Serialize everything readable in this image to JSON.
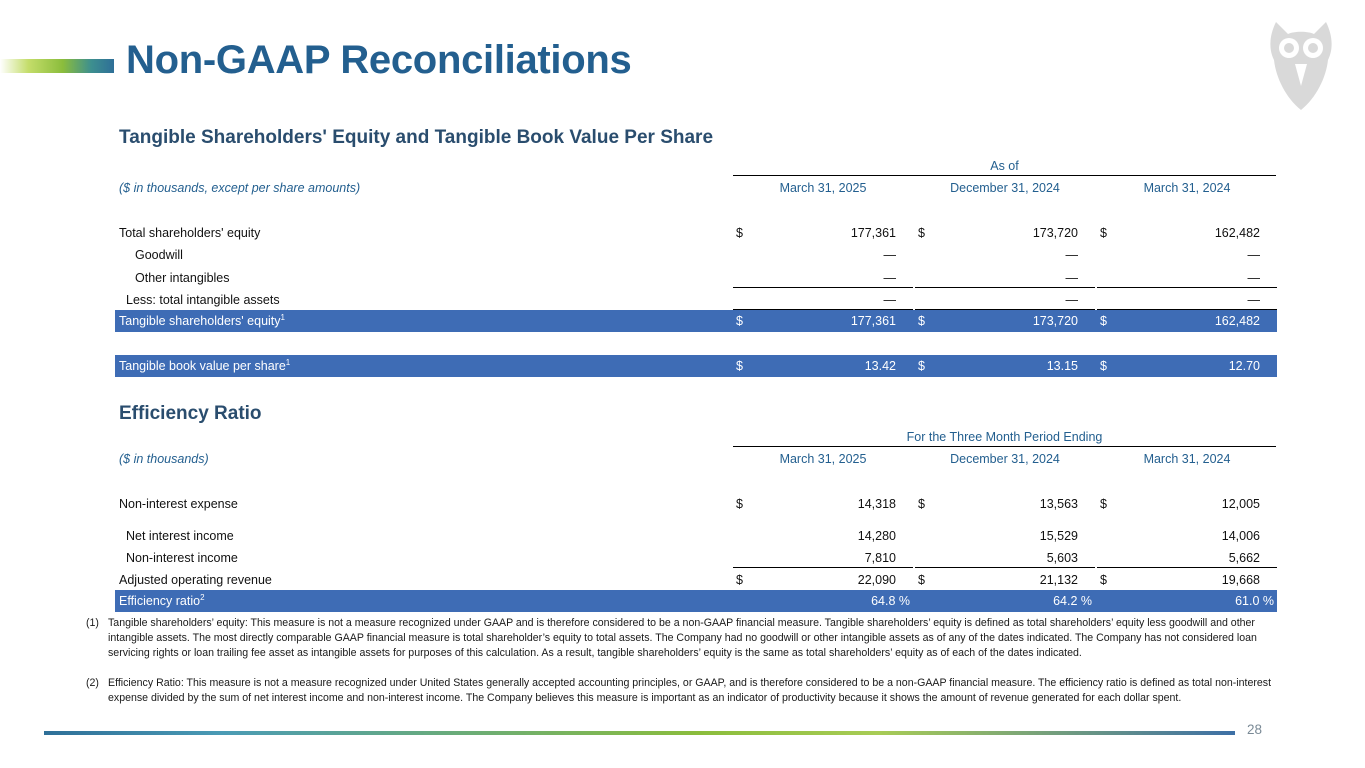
{
  "header": {
    "title": "Non-GAAP Reconciliations"
  },
  "tangible": {
    "section_title": "Tangible Shareholders' Equity and Tangible Book Value Per Share",
    "group_header": "As of",
    "units_label": "($ in thousands, except per share amounts)",
    "columns": [
      "March 31, 2025",
      "December 31, 2024",
      "March 31, 2024"
    ],
    "rows": [
      {
        "label": "Total shareholders' equity",
        "currency": [
          "$",
          "$",
          "$"
        ],
        "values": [
          "177,361",
          "173,720",
          "162,482"
        ]
      },
      {
        "label": "Goodwill",
        "currency": [
          "",
          "",
          ""
        ],
        "values": [
          "—",
          "—",
          "—"
        ]
      },
      {
        "label": "Other intangibles",
        "currency": [
          "",
          "",
          ""
        ],
        "values": [
          "—",
          "—",
          "—"
        ]
      },
      {
        "label": "Less: total intangible assets",
        "currency": [
          "",
          "",
          ""
        ],
        "values": [
          "—",
          "—",
          "—"
        ]
      }
    ],
    "equity_row": {
      "label": "Tangible shareholders' equity",
      "sup": "1",
      "currency": [
        "$",
        "$",
        "$"
      ],
      "values": [
        "177,361",
        "173,720",
        "162,482"
      ]
    },
    "bvps_row": {
      "label": "Tangible book value per share",
      "sup": "1",
      "currency": [
        "$",
        "$",
        "$"
      ],
      "values": [
        "13.42",
        "13.15",
        "12.70"
      ]
    }
  },
  "efficiency": {
    "section_title": "Efficiency Ratio",
    "group_header": "For the Three Month Period Ending",
    "units_label": "($ in thousands)",
    "columns": [
      "March 31, 2025",
      "December 31, 2024",
      "March 31, 2024"
    ],
    "rows": [
      {
        "label": "Non-interest expense",
        "currency": [
          "$",
          "$",
          "$"
        ],
        "values": [
          "14,318",
          "13,563",
          "12,005"
        ]
      },
      {
        "label": "Net interest income",
        "currency": [
          "",
          "",
          ""
        ],
        "values": [
          "14,280",
          "15,529",
          "14,006"
        ]
      },
      {
        "label": "Non-interest income",
        "currency": [
          "",
          "",
          ""
        ],
        "values": [
          "7,810",
          "5,603",
          "5,662"
        ]
      },
      {
        "label": "Adjusted operating revenue",
        "currency": [
          "$",
          "$",
          "$"
        ],
        "values": [
          "22,090",
          "21,132",
          "19,668"
        ]
      }
    ],
    "ratio_row": {
      "label": "Efficiency ratio",
      "sup": "2",
      "values": [
        "64.8 %",
        "64.2 %",
        "61.0 %"
      ]
    }
  },
  "footnotes": [
    {
      "num": "(1)",
      "text": "Tangible shareholders’ equity: This measure is not a measure recognized under GAAP and is therefore considered to be a non-GAAP financial measure. Tangible shareholders’ equity is defined as total shareholders’ equity less goodwill and other intangible assets. The most directly comparable GAAP financial measure is total shareholder’s equity to total assets. The Company had no goodwill or other intangible assets as of any of the dates indicated. The Company has not considered loan servicing rights or loan trailing fee asset as intangible assets for purposes of this calculation. As a result, tangible shareholders’ equity is the same as total shareholders’ equity as of each of the dates indicated."
    },
    {
      "num": "(2)",
      "text": "Efficiency Ratio: This measure is not a measure recognized under United States generally accepted accounting principles, or GAAP, and is therefore considered to be a non-GAAP financial measure. The efficiency ratio is defined as total non-interest expense divided by the sum of net interest income and non-interest income. The Company believes this measure is important as an indicator of productivity because it shows the amount of revenue generated for each dollar spent."
    }
  ],
  "page_number": "28",
  "colors": {
    "title_blue": "#235f8f",
    "band_blue": "#3e6cb5",
    "section_navy": "#2a4d6e"
  },
  "icons": {
    "logo": "owl-logo"
  }
}
